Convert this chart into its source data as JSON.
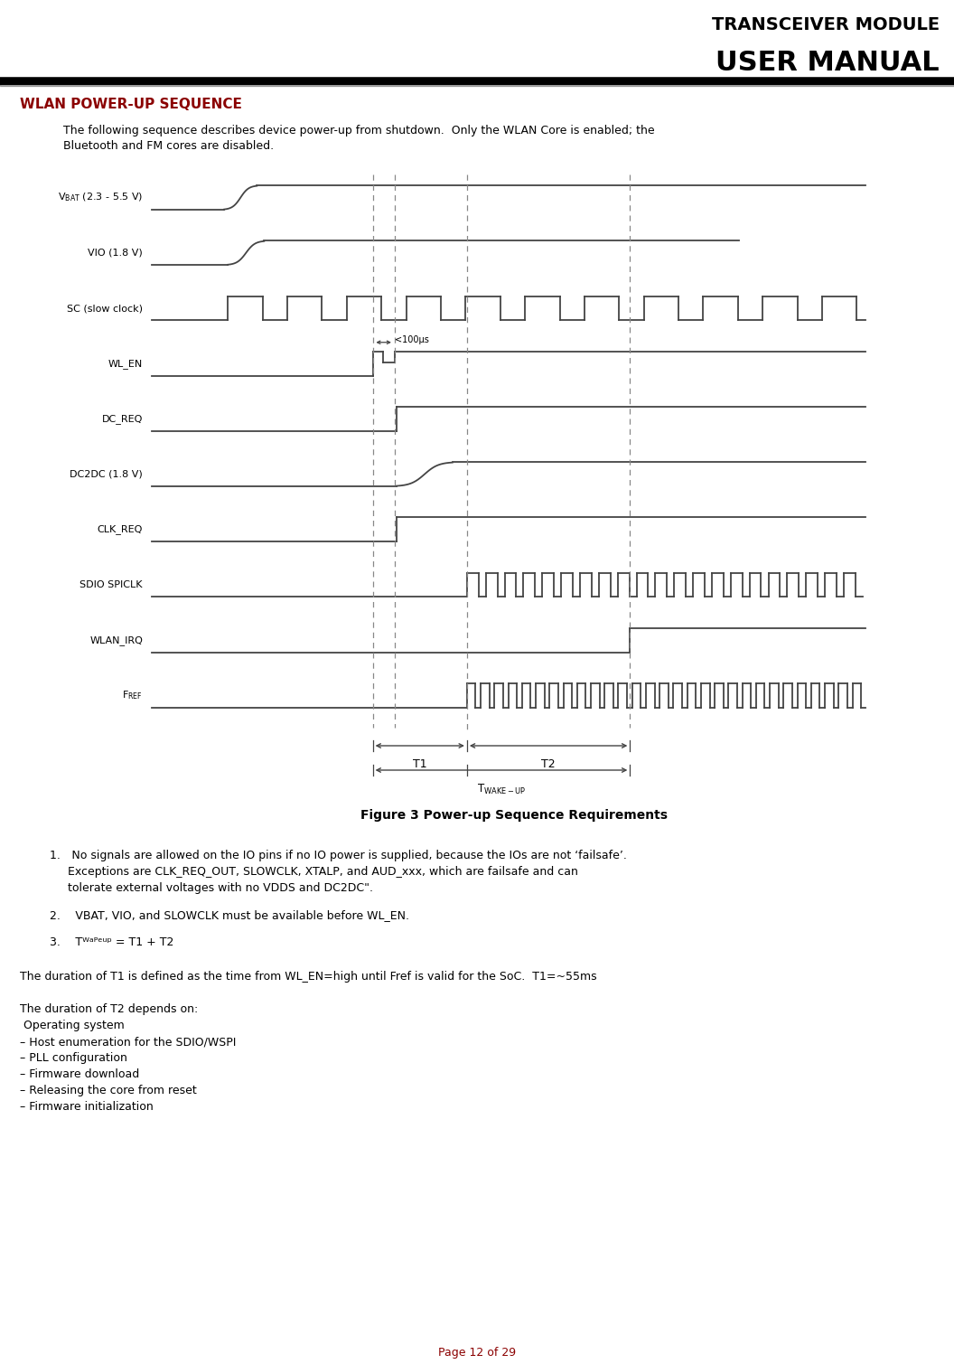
{
  "header_line1": "TRANSCEIVER MODULE",
  "header_line2": "USER MANUAL",
  "section_title": "WLAN POWER-UP SEQUENCE",
  "section_title_color": "#8B0000",
  "intro_text_line1": "The following sequence describes device power-up from shutdown.  Only the WLAN Core is enabled; the",
  "intro_text_line2": "Bluetooth and FM cores are disabled.",
  "figure_caption": "Figure 3 Power-up Sequence Requirements",
  "footer_text": "Page 12 of 29",
  "footer_color": "#8B0000",
  "background_color": "#ffffff",
  "line_color": "#444444"
}
